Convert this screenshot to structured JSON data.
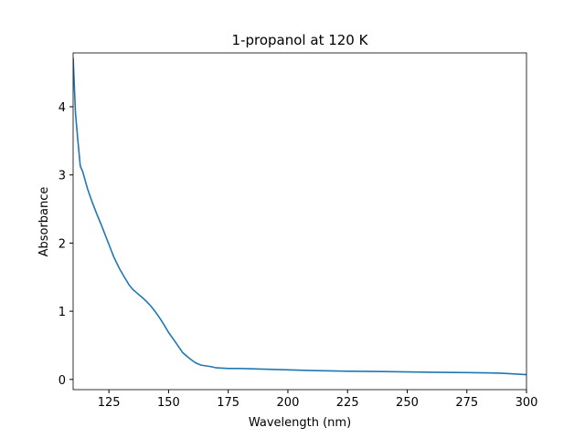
{
  "chart_data": {
    "type": "line",
    "title": "1-propanol at 120 K",
    "x_label": "Wavelength (nm)",
    "y_label": "Absorbance",
    "x": [
      110,
      111,
      112,
      113,
      114,
      116,
      118,
      120,
      122,
      125,
      127,
      129.5,
      131.5,
      133.4,
      135,
      137,
      139,
      140.6,
      142.5,
      144.5,
      146.5,
      148.3,
      150,
      152,
      154,
      156,
      158,
      159.8,
      161.5,
      163.6,
      165.5,
      167.4,
      170,
      175,
      180,
      190,
      200,
      210,
      225,
      240,
      250,
      260,
      275,
      285,
      290,
      295,
      300
    ],
    "series": [
      {
        "name": "1-propanol",
        "color": "#1f77b4",
        "values": [
          4.72,
          3.9,
          3.5,
          3.13,
          3.05,
          2.8,
          2.6,
          2.42,
          2.25,
          1.98,
          1.8,
          1.62,
          1.5,
          1.39,
          1.32,
          1.26,
          1.2,
          1.15,
          1.08,
          0.99,
          0.89,
          0.79,
          0.69,
          0.59,
          0.49,
          0.39,
          0.33,
          0.28,
          0.24,
          0.21,
          0.2,
          0.19,
          0.17,
          0.16,
          0.16,
          0.15,
          0.14,
          0.13,
          0.12,
          0.115,
          0.11,
          0.105,
          0.1,
          0.095,
          0.09,
          0.08,
          0.07
        ]
      }
    ],
    "xlim": [
      110,
      300
    ],
    "ylim": [
      -0.15,
      4.79
    ],
    "xticks": [
      125,
      150,
      175,
      200,
      225,
      250,
      275,
      300
    ],
    "yticks": [
      0,
      1,
      2,
      3,
      4
    ],
    "grid": false
  }
}
